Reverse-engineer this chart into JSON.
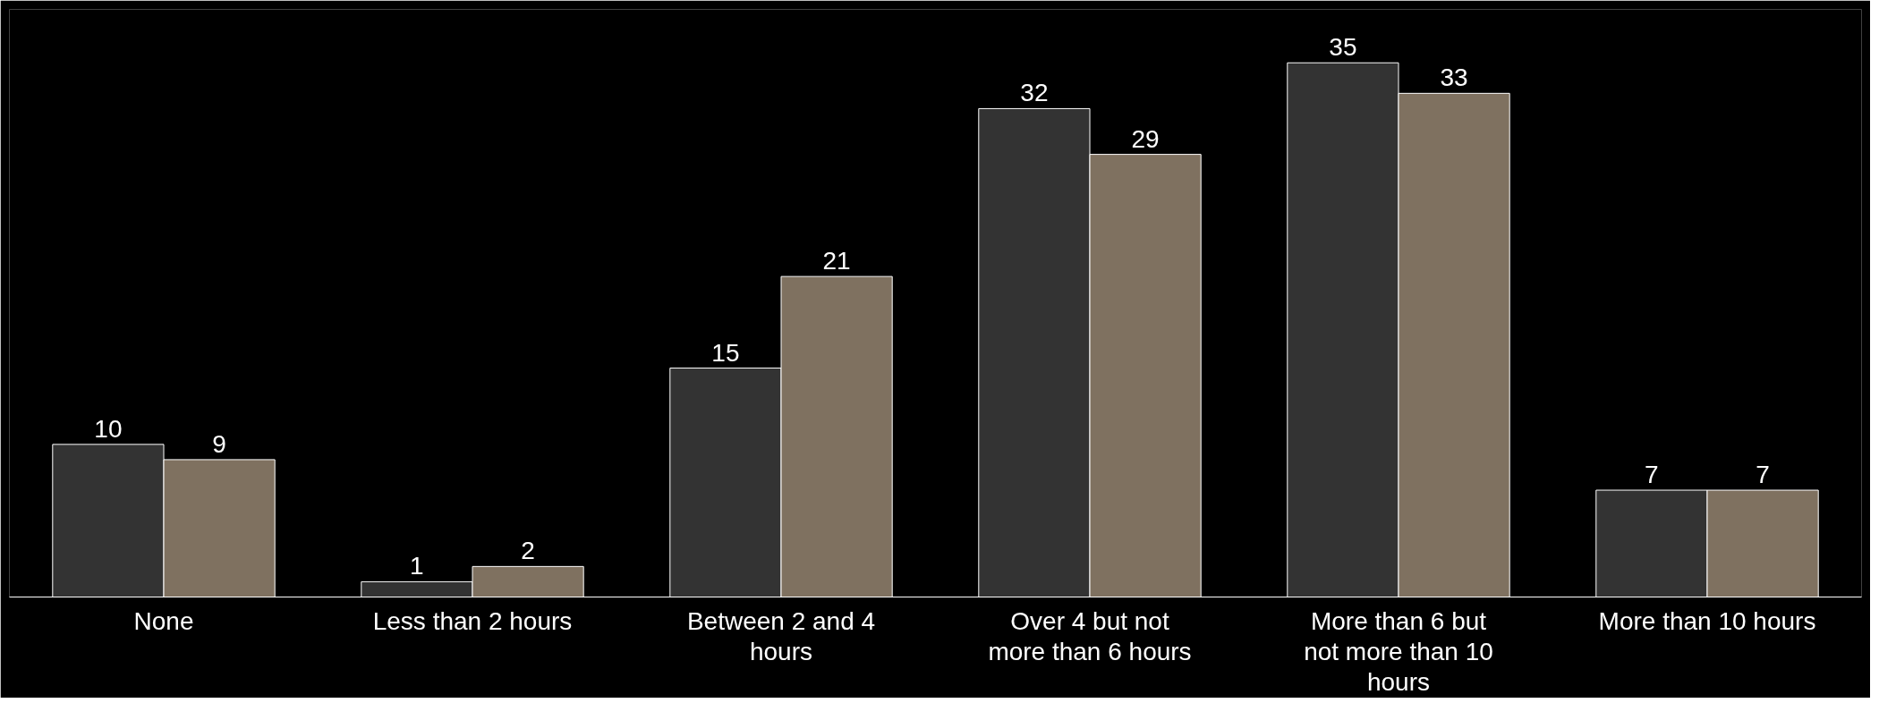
{
  "chart_data": {
    "type": "bar",
    "categories": [
      "None",
      "Less than 2 hours",
      "Between 2 and 4 hours",
      "Over 4 but not more than 6 hours",
      "More than 6 but not more than 10 hours",
      "More than 10 hours"
    ],
    "series": [
      {
        "color": "#333333",
        "values": [
          10,
          1,
          15,
          32,
          35,
          7
        ]
      },
      {
        "color": "#7f7160",
        "values": [
          9,
          2,
          21,
          29,
          33,
          7
        ]
      }
    ],
    "data_labels": true,
    "tick_labels": "x"
  }
}
